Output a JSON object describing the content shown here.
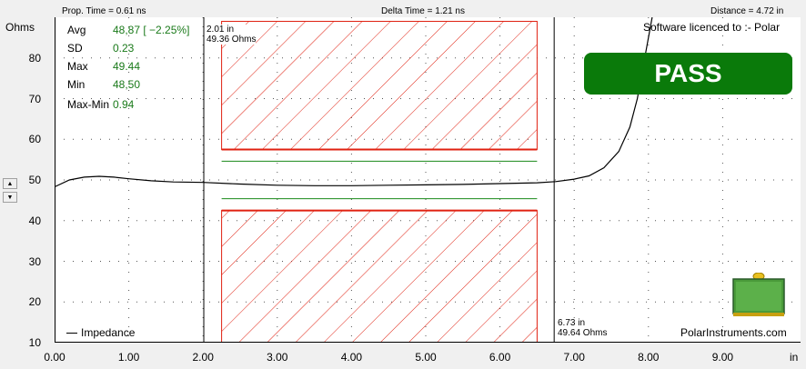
{
  "header": {
    "prop_time": "Prop. Time = 0.61 ns",
    "delta_time": "Delta Time = 1.21 ns",
    "distance": "Distance = 4.72 in"
  },
  "stats": [
    {
      "label": "Avg",
      "value": "48,87 [ −2.25%]"
    },
    {
      "label": "SD",
      "value": "0.23"
    },
    {
      "label": "Max",
      "value": "49.44"
    },
    {
      "label": "Min",
      "value": "48,50"
    },
    {
      "label": "Max-Min",
      "value": "0.94"
    }
  ],
  "cursor1": {
    "line1": "2.01 in",
    "line2": "49.36 Ohms"
  },
  "cursor2": {
    "line1": "6.73 in",
    "line2": "49.64 Ohms"
  },
  "licence": "Software licenced to :- Polar",
  "pass_label": "PASS",
  "legend_label": "Impedance",
  "brand": "PolarInstruments.com",
  "colors": {
    "pass_bg": "#0a7a0a",
    "limit_red": "#e02010",
    "limit_green": "#1a8a1a",
    "stats_green": "#1a7a1a"
  },
  "chart_data": {
    "type": "line",
    "title": "",
    "xlabel": "in",
    "ylabel": "Ohms",
    "xlim": [
      0,
      10
    ],
    "ylim": [
      10,
      90
    ],
    "x_ticks": [
      "0.00",
      "1.00",
      "2.00",
      "3.00",
      "4.00",
      "5.00",
      "6.00",
      "7.00",
      "8.00",
      "9.00"
    ],
    "y_ticks": [
      "10",
      "20",
      "30",
      "40",
      "50",
      "60",
      "70",
      "80"
    ],
    "grid": "dotted",
    "legend_position": "bottom-left",
    "series": [
      {
        "name": "Impedance",
        "x": [
          0,
          0.2,
          0.4,
          0.6,
          0.8,
          1.0,
          1.3,
          1.6,
          2.0,
          2.5,
          3.0,
          3.5,
          4.0,
          4.5,
          5.0,
          5.5,
          6.0,
          6.5,
          6.75,
          7.0,
          7.2,
          7.4,
          7.6,
          7.75,
          7.85,
          7.95,
          8.05
        ],
        "y": [
          48.3,
          50.0,
          50.7,
          50.9,
          50.7,
          50.3,
          49.8,
          49.5,
          49.4,
          49.0,
          48.7,
          48.6,
          48.6,
          48.7,
          48.8,
          48.9,
          49.1,
          49.3,
          49.6,
          50.2,
          51.0,
          53.0,
          57.0,
          63.0,
          70.0,
          80.0,
          90.0
        ]
      }
    ],
    "cursors": [
      2.01,
      6.73
    ],
    "limit_boxes": {
      "x_range": [
        2.25,
        6.5
      ],
      "upper_red": [
        57.5,
        89.0
      ],
      "upper_green": 54.6,
      "lower_red": [
        10.0,
        42.5
      ],
      "lower_green": 45.4
    }
  }
}
